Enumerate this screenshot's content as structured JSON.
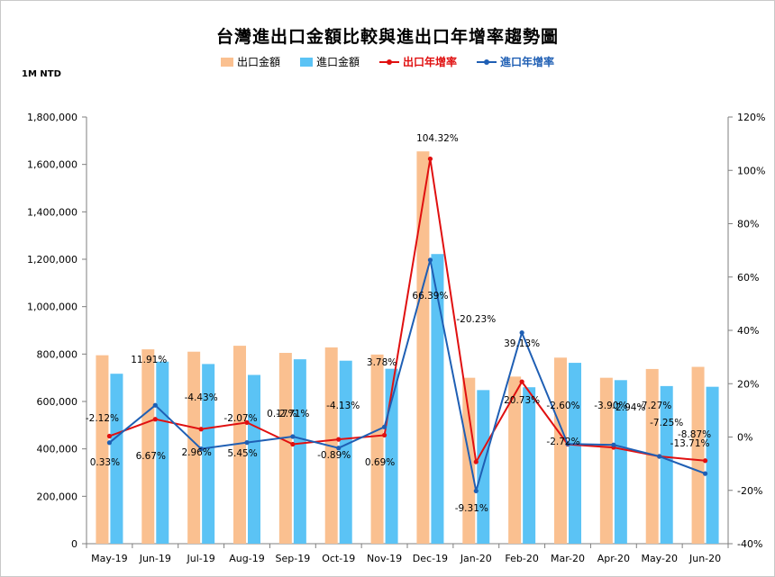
{
  "title": "台灣進出口金額比較與進出口年增率趨勢圖",
  "unit_label": "1M NTD",
  "colors": {
    "export_bar": "#FAC090",
    "import_bar": "#5BC3F5",
    "export_line": "#E01010",
    "import_line": "#1F5FB4",
    "axis": "#7F7F7F",
    "text": "#000000"
  },
  "legend": [
    {
      "label": "出口金額",
      "kind": "bar",
      "color": "#FAC090",
      "text_color": "#000000"
    },
    {
      "label": "進口金額",
      "kind": "bar",
      "color": "#5BC3F5",
      "text_color": "#000000"
    },
    {
      "label": "出口年增率",
      "kind": "line",
      "color": "#E01010",
      "text_color": "#E01010"
    },
    {
      "label": "進口年增率",
      "kind": "line",
      "color": "#1F5FB4",
      "text_color": "#1F5FB4"
    }
  ],
  "chart_data": {
    "type": "bar",
    "title": "台灣進出口金額比較與進出口年增率趨勢圖",
    "categories": [
      "May-19",
      "Jun-19",
      "Jul-19",
      "Aug-19",
      "Sep-19",
      "Oct-19",
      "Nov-19",
      "Dec-19",
      "Jan-20",
      "Feb-20",
      "Mar-20",
      "Apr-20",
      "May-20",
      "Jun-20"
    ],
    "y_left": {
      "range": [
        0,
        1800000
      ],
      "ticks": [
        "0",
        "200,000",
        "400,000",
        "600,000",
        "800,000",
        "1,000,000",
        "1,200,000",
        "1,400,000",
        "1,600,000",
        "1,800,000"
      ]
    },
    "y_right": {
      "range": [
        -40,
        120
      ],
      "ticks": [
        "-40%",
        "-20%",
        "0%",
        "20%",
        "40%",
        "60%",
        "80%",
        "100%",
        "120%"
      ]
    },
    "grid": false,
    "legend_position": "top",
    "bar_series": [
      {
        "name": "出口金額",
        "values": [
          795000,
          820000,
          810000,
          835000,
          805000,
          828000,
          798000,
          1655000,
          700000,
          705000,
          785000,
          700000,
          737000,
          746000
        ]
      },
      {
        "name": "進口金額",
        "values": [
          717000,
          768000,
          758000,
          712000,
          778000,
          772000,
          738000,
          1222000,
          648000,
          660000,
          763000,
          690000,
          665000,
          662000
        ]
      }
    ],
    "line_series": [
      {
        "name": "出口年增率",
        "axis": "right",
        "values": [
          0.33,
          6.67,
          2.96,
          5.45,
          -2.71,
          -0.89,
          0.69,
          104.32,
          -9.31,
          20.73,
          -2.72,
          -3.9,
          -7.27,
          -8.87
        ],
        "labels": [
          "0.33%",
          "6.67%",
          "2.96%",
          "5.45%",
          "-2.71%",
          "-0.89%",
          "0.69%",
          "104.32%",
          "-9.31%",
          "20.73%",
          "-2.72%",
          "-3.90%",
          "-7.27%",
          "-8.87%"
        ]
      },
      {
        "name": "進口年增率",
        "axis": "right",
        "values": [
          -2.12,
          11.91,
          -4.43,
          -2.07,
          0.17,
          -4.13,
          3.78,
          66.39,
          -20.23,
          39.13,
          -2.6,
          -2.94,
          -7.25,
          -13.71
        ],
        "labels": [
          "-2.12%",
          "11.91%",
          "-4.43%",
          "-2.07%",
          "0.17%",
          "-4.13%",
          "3.78%",
          "66.39%",
          "-20.23%",
          "39.13%",
          "-2.60%",
          "-2.94%",
          "-7.25%",
          "-13.71%"
        ]
      }
    ]
  }
}
